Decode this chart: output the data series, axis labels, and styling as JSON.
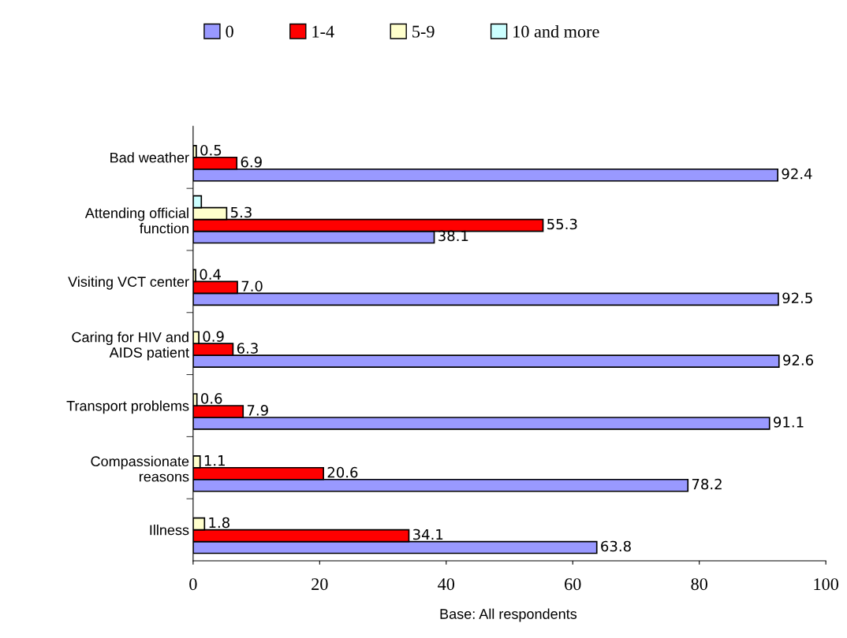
{
  "chart_data": {
    "type": "bar",
    "orientation": "horizontal",
    "categories": [
      "Bad weather",
      "Attending official\nfunction",
      "Visiting VCT center",
      "Caring for HIV and\nAIDS patient",
      "Transport problems",
      "Compassionate\nreasons",
      "Illness"
    ],
    "series": [
      {
        "name": "0",
        "color": "#9999ff",
        "values": [
          92.4,
          38.1,
          92.5,
          92.6,
          91.1,
          78.2,
          63.8
        ],
        "value_labels": [
          "92.4",
          "38.1",
          "92.5",
          "92.6",
          "91.1",
          "78.2",
          "63.8"
        ]
      },
      {
        "name": "1-4",
        "color": "#ff0000",
        "values": [
          6.9,
          55.3,
          7.0,
          6.3,
          7.9,
          20.6,
          34.1
        ],
        "value_labels": [
          "6.9",
          "55.3",
          "7.0",
          "6.3",
          "7.9",
          "20.6",
          "34.1"
        ]
      },
      {
        "name": "5-9",
        "color": "#ffffcc",
        "values": [
          0.5,
          5.3,
          0.4,
          0.9,
          0.6,
          1.1,
          1.8
        ],
        "value_labels": [
          "0.5",
          "5.3",
          "0.4",
          "0.9",
          "0.6",
          "1.1",
          "1.8"
        ]
      },
      {
        "name": "10 and more",
        "color": "#ccffff",
        "values": [
          null,
          1.3,
          null,
          null,
          null,
          null,
          null
        ],
        "value_labels": [
          null,
          null,
          null,
          null,
          null,
          null,
          null
        ]
      }
    ],
    "xlim": [
      0,
      100
    ],
    "xticks": [
      0,
      20,
      40,
      60,
      80,
      100
    ],
    "legend": "top",
    "grid": false,
    "annotations": [
      "Base: All respondents"
    ]
  }
}
